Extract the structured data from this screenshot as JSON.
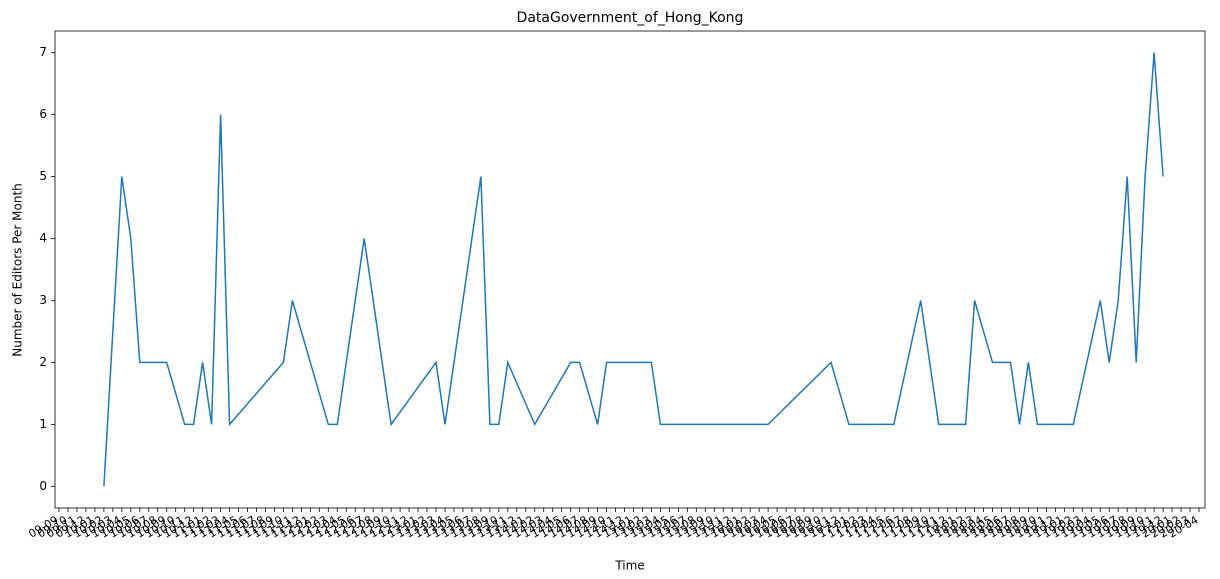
{
  "chart_data": {
    "type": "line",
    "title": "DataGovernment_of_Hong_Kong",
    "x_label": "Time",
    "y_label": "Number of Editors Per Month",
    "xticks": [
      "09-09",
      "09-10",
      "09-11",
      "09-12",
      "10-01",
      "10-02",
      "10-03",
      "10-04",
      "10-05",
      "10-06",
      "10-07",
      "10-08",
      "10-09",
      "10-10",
      "10-11",
      "10-12",
      "11-01",
      "11-02",
      "11-03",
      "11-04",
      "11-05",
      "11-06",
      "11-07",
      "11-08",
      "11-09",
      "11-10",
      "11-11",
      "11-12",
      "12-01",
      "12-02",
      "12-03",
      "12-04",
      "12-05",
      "12-06",
      "12-07",
      "12-08",
      "12-09",
      "12-10",
      "12-11",
      "12-12",
      "13-01",
      "13-02",
      "13-03",
      "13-04",
      "13-05",
      "13-06",
      "13-07",
      "13-08",
      "13-09",
      "13-10",
      "13-11",
      "13-12",
      "14-01",
      "14-02",
      "14-03",
      "14-04",
      "14-05",
      "14-06",
      "14-07",
      "14-08",
      "14-09",
      "14-10",
      "14-11",
      "14-12",
      "15-01",
      "15-02",
      "15-03",
      "15-04",
      "15-05",
      "15-06",
      "15-07",
      "15-08",
      "15-09",
      "15-10",
      "15-11",
      "15-12",
      "16-01",
      "16-02",
      "16-03",
      "16-04",
      "16-05",
      "16-06",
      "16-07",
      "16-08",
      "16-09",
      "16-10",
      "16-11",
      "16-12",
      "17-01",
      "17-02",
      "17-03",
      "17-04",
      "17-05",
      "17-06",
      "17-07",
      "17-08",
      "17-09",
      "17-10",
      "17-11",
      "17-12",
      "18-01",
      "18-02",
      "18-03",
      "18-04",
      "18-05",
      "18-06",
      "18-07",
      "18-08",
      "18-09",
      "18-10",
      "18-11",
      "18-12",
      "19-01",
      "19-02",
      "19-03",
      "19-04",
      "19-05",
      "19-06",
      "19-07",
      "19-08",
      "19-09",
      "19-10",
      "19-11",
      "19-12",
      "20-01",
      "20-02",
      "20-03",
      "20-04"
    ],
    "x": [
      "10-02",
      "10-04",
      "10-05",
      "10-06",
      "10-09",
      "10-11",
      "10-12",
      "11-01",
      "11-02",
      "11-03",
      "11-04",
      "11-10",
      "11-11",
      "12-01",
      "12-03",
      "12-04",
      "12-06",
      "12-07",
      "12-08",
      "12-10",
      "13-03",
      "13-04",
      "13-05",
      "13-07",
      "13-08",
      "13-09",
      "13-10",
      "13-11",
      "14-02",
      "14-06",
      "14-07",
      "14-09",
      "14-10",
      "15-03",
      "15-04",
      "16-04",
      "16-11",
      "17-01",
      "17-06",
      "17-09",
      "17-11",
      "18-02",
      "18-03",
      "18-05",
      "18-07",
      "18-08",
      "18-09",
      "18-10",
      "19-02",
      "19-05",
      "19-06",
      "19-07",
      "19-08",
      "19-09",
      "19-10",
      "19-11",
      "19-12"
    ],
    "series": [
      {
        "color": "#1f77b4",
        "values": [
          0,
          5,
          4,
          2,
          2,
          1,
          1,
          2,
          1,
          6,
          1,
          2,
          3,
          2,
          1,
          1,
          3,
          4,
          3,
          1,
          2,
          1,
          2,
          4,
          5,
          1,
          1,
          2,
          1,
          2,
          2,
          1,
          2,
          2,
          1,
          1,
          2,
          1,
          1,
          3,
          1,
          1,
          3,
          2,
          2,
          1,
          2,
          1,
          1,
          3,
          2,
          3,
          5,
          2,
          5,
          7,
          5
        ]
      }
    ],
    "ylim": [
      -0.35,
      7.35
    ],
    "yticks": [
      0,
      1,
      2,
      3,
      4,
      5,
      6,
      7
    ]
  }
}
